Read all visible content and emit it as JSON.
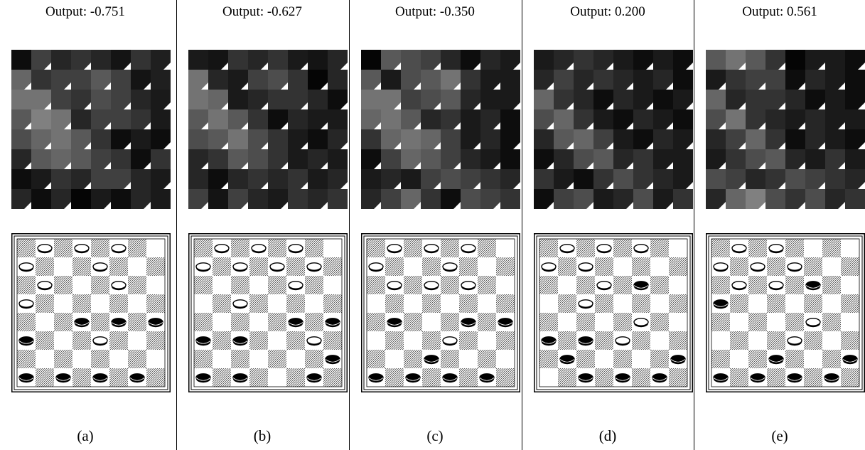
{
  "panels": [
    {
      "label": "(a)",
      "title": "Output: -0.751",
      "heatmap": [
        [
          0.05,
          0.25,
          0.15,
          0.2,
          0.15,
          0.08,
          0.2,
          0.12
        ],
        [
          0.4,
          0.2,
          0.25,
          0.25,
          0.35,
          0.25,
          0.08,
          0.12
        ],
        [
          0.45,
          0.45,
          0.25,
          0.2,
          0.3,
          0.25,
          0.15,
          0.1
        ],
        [
          0.35,
          0.5,
          0.45,
          0.15,
          0.25,
          0.25,
          0.2,
          0.1
        ],
        [
          0.3,
          0.4,
          0.45,
          0.35,
          0.2,
          0.05,
          0.1,
          0.05
        ],
        [
          0.15,
          0.35,
          0.4,
          0.35,
          0.25,
          0.2,
          0.05,
          0.2
        ],
        [
          0.05,
          0.1,
          0.2,
          0.15,
          0.25,
          0.25,
          0.15,
          0.1
        ],
        [
          0.15,
          0.05,
          0.15,
          0.02,
          0.1,
          0.05,
          0.15,
          0.1
        ]
      ],
      "pieces": {
        "white": [
          [
            0,
            1
          ],
          [
            0,
            3
          ],
          [
            0,
            5
          ],
          [
            1,
            0
          ],
          [
            1,
            4
          ],
          [
            2,
            1
          ],
          [
            2,
            5
          ],
          [
            3,
            0
          ],
          [
            5,
            4
          ]
        ],
        "black": [
          [
            4,
            3
          ],
          [
            4,
            5
          ],
          [
            4,
            7
          ],
          [
            5,
            0
          ],
          [
            7,
            0
          ],
          [
            7,
            2
          ],
          [
            7,
            4
          ],
          [
            7,
            6
          ]
        ]
      }
    },
    {
      "label": "(b)",
      "title": "Output: -0.627",
      "heatmap": [
        [
          0.1,
          0.08,
          0.2,
          0.15,
          0.2,
          0.1,
          0.08,
          0.15
        ],
        [
          0.45,
          0.15,
          0.1,
          0.25,
          0.3,
          0.2,
          0.02,
          0.15
        ],
        [
          0.45,
          0.4,
          0.1,
          0.15,
          0.2,
          0.2,
          0.15,
          0.05
        ],
        [
          0.35,
          0.45,
          0.35,
          0.2,
          0.05,
          0.15,
          0.1,
          0.1
        ],
        [
          0.3,
          0.35,
          0.45,
          0.3,
          0.2,
          0.1,
          0.05,
          0.15
        ],
        [
          0.15,
          0.2,
          0.35,
          0.3,
          0.2,
          0.1,
          0.15,
          0.1
        ],
        [
          0.15,
          0.05,
          0.15,
          0.2,
          0.15,
          0.2,
          0.1,
          0.15
        ],
        [
          0.25,
          0.08,
          0.25,
          0.15,
          0.1,
          0.2,
          0.15,
          0.2
        ]
      ],
      "pieces": {
        "white": [
          [
            0,
            1
          ],
          [
            0,
            3
          ],
          [
            0,
            5
          ],
          [
            1,
            0
          ],
          [
            1,
            2
          ],
          [
            1,
            4
          ],
          [
            1,
            6
          ],
          [
            2,
            5
          ],
          [
            3,
            2
          ],
          [
            5,
            6
          ]
        ],
        "black": [
          [
            4,
            5
          ],
          [
            4,
            7
          ],
          [
            5,
            0
          ],
          [
            5,
            2
          ],
          [
            6,
            7
          ],
          [
            7,
            0
          ],
          [
            7,
            2
          ],
          [
            7,
            6
          ]
        ]
      }
    },
    {
      "label": "(c)",
      "title": "Output: -0.350",
      "heatmap": [
        [
          0.02,
          0.35,
          0.3,
          0.25,
          0.15,
          0.05,
          0.15,
          0.1
        ],
        [
          0.35,
          0.1,
          0.3,
          0.35,
          0.45,
          0.2,
          0.1,
          0.1
        ],
        [
          0.45,
          0.45,
          0.25,
          0.3,
          0.35,
          0.15,
          0.1,
          0.1
        ],
        [
          0.4,
          0.45,
          0.35,
          0.15,
          0.2,
          0.1,
          0.15,
          0.05
        ],
        [
          0.2,
          0.4,
          0.45,
          0.4,
          0.25,
          0.1,
          0.15,
          0.05
        ],
        [
          0.05,
          0.25,
          0.4,
          0.35,
          0.25,
          0.15,
          0.1,
          0.05
        ],
        [
          0.1,
          0.15,
          0.1,
          0.25,
          0.3,
          0.25,
          0.2,
          0.15
        ],
        [
          0.15,
          0.25,
          0.4,
          0.2,
          0.05,
          0.3,
          0.25,
          0.2
        ]
      ],
      "pieces": {
        "white": [
          [
            0,
            1
          ],
          [
            0,
            3
          ],
          [
            0,
            5
          ],
          [
            1,
            0
          ],
          [
            1,
            4
          ],
          [
            2,
            1
          ],
          [
            2,
            3
          ],
          [
            2,
            5
          ],
          [
            5,
            4
          ]
        ],
        "black": [
          [
            4,
            1
          ],
          [
            4,
            5
          ],
          [
            4,
            7
          ],
          [
            6,
            3
          ],
          [
            7,
            0
          ],
          [
            7,
            2
          ],
          [
            7,
            4
          ],
          [
            7,
            6
          ]
        ]
      }
    },
    {
      "label": "(d)",
      "title": "Output: 0.200",
      "heatmap": [
        [
          0.1,
          0.15,
          0.2,
          0.15,
          0.1,
          0.05,
          0.1,
          0.05
        ],
        [
          0.15,
          0.25,
          0.15,
          0.2,
          0.15,
          0.1,
          0.15,
          0.05
        ],
        [
          0.4,
          0.2,
          0.15,
          0.05,
          0.15,
          0.1,
          0.05,
          0.1
        ],
        [
          0.3,
          0.4,
          0.2,
          0.1,
          0.05,
          0.15,
          0.1,
          0.05
        ],
        [
          0.15,
          0.35,
          0.4,
          0.25,
          0.1,
          0.05,
          0.15,
          0.1
        ],
        [
          0.05,
          0.15,
          0.3,
          0.35,
          0.15,
          0.2,
          0.1,
          0.1
        ],
        [
          0.2,
          0.1,
          0.05,
          0.2,
          0.3,
          0.2,
          0.15,
          0.1
        ],
        [
          0.05,
          0.25,
          0.3,
          0.1,
          0.15,
          0.3,
          0.1,
          0.2
        ]
      ],
      "pieces": {
        "white": [
          [
            0,
            1
          ],
          [
            0,
            3
          ],
          [
            0,
            5
          ],
          [
            1,
            0
          ],
          [
            1,
            2
          ],
          [
            2,
            3
          ],
          [
            3,
            2
          ],
          [
            4,
            5
          ],
          [
            5,
            4
          ]
        ],
        "black": [
          [
            2,
            5
          ],
          [
            5,
            0
          ],
          [
            5,
            2
          ],
          [
            6,
            1
          ],
          [
            6,
            7
          ],
          [
            7,
            2
          ],
          [
            7,
            4
          ],
          [
            7,
            6
          ]
        ]
      }
    },
    {
      "label": "(e)",
      "title": "Output: 0.561",
      "heatmap": [
        [
          0.35,
          0.45,
          0.35,
          0.2,
          0.02,
          0.1,
          0.1,
          0.05
        ],
        [
          0.1,
          0.2,
          0.25,
          0.25,
          0.05,
          0.15,
          0.1,
          0.05
        ],
        [
          0.4,
          0.15,
          0.2,
          0.2,
          0.15,
          0.05,
          0.1,
          0.05
        ],
        [
          0.3,
          0.45,
          0.2,
          0.15,
          0.1,
          0.15,
          0.1,
          0.1
        ],
        [
          0.15,
          0.25,
          0.4,
          0.2,
          0.05,
          0.15,
          0.1,
          0.05
        ],
        [
          0.1,
          0.2,
          0.3,
          0.35,
          0.15,
          0.1,
          0.2,
          0.1
        ],
        [
          0.3,
          0.25,
          0.15,
          0.2,
          0.3,
          0.25,
          0.2,
          0.15
        ],
        [
          0.15,
          0.4,
          0.5,
          0.3,
          0.2,
          0.3,
          0.15,
          0.2
        ]
      ],
      "pieces": {
        "white": [
          [
            0,
            1
          ],
          [
            0,
            3
          ],
          [
            1,
            0
          ],
          [
            1,
            2
          ],
          [
            1,
            4
          ],
          [
            2,
            1
          ],
          [
            2,
            3
          ],
          [
            4,
            5
          ],
          [
            5,
            4
          ]
        ],
        "black": [
          [
            2,
            5
          ],
          [
            3,
            0
          ],
          [
            6,
            3
          ],
          [
            6,
            7
          ],
          [
            7,
            0
          ],
          [
            7,
            2
          ],
          [
            7,
            4
          ],
          [
            7,
            6
          ]
        ]
      }
    }
  ]
}
